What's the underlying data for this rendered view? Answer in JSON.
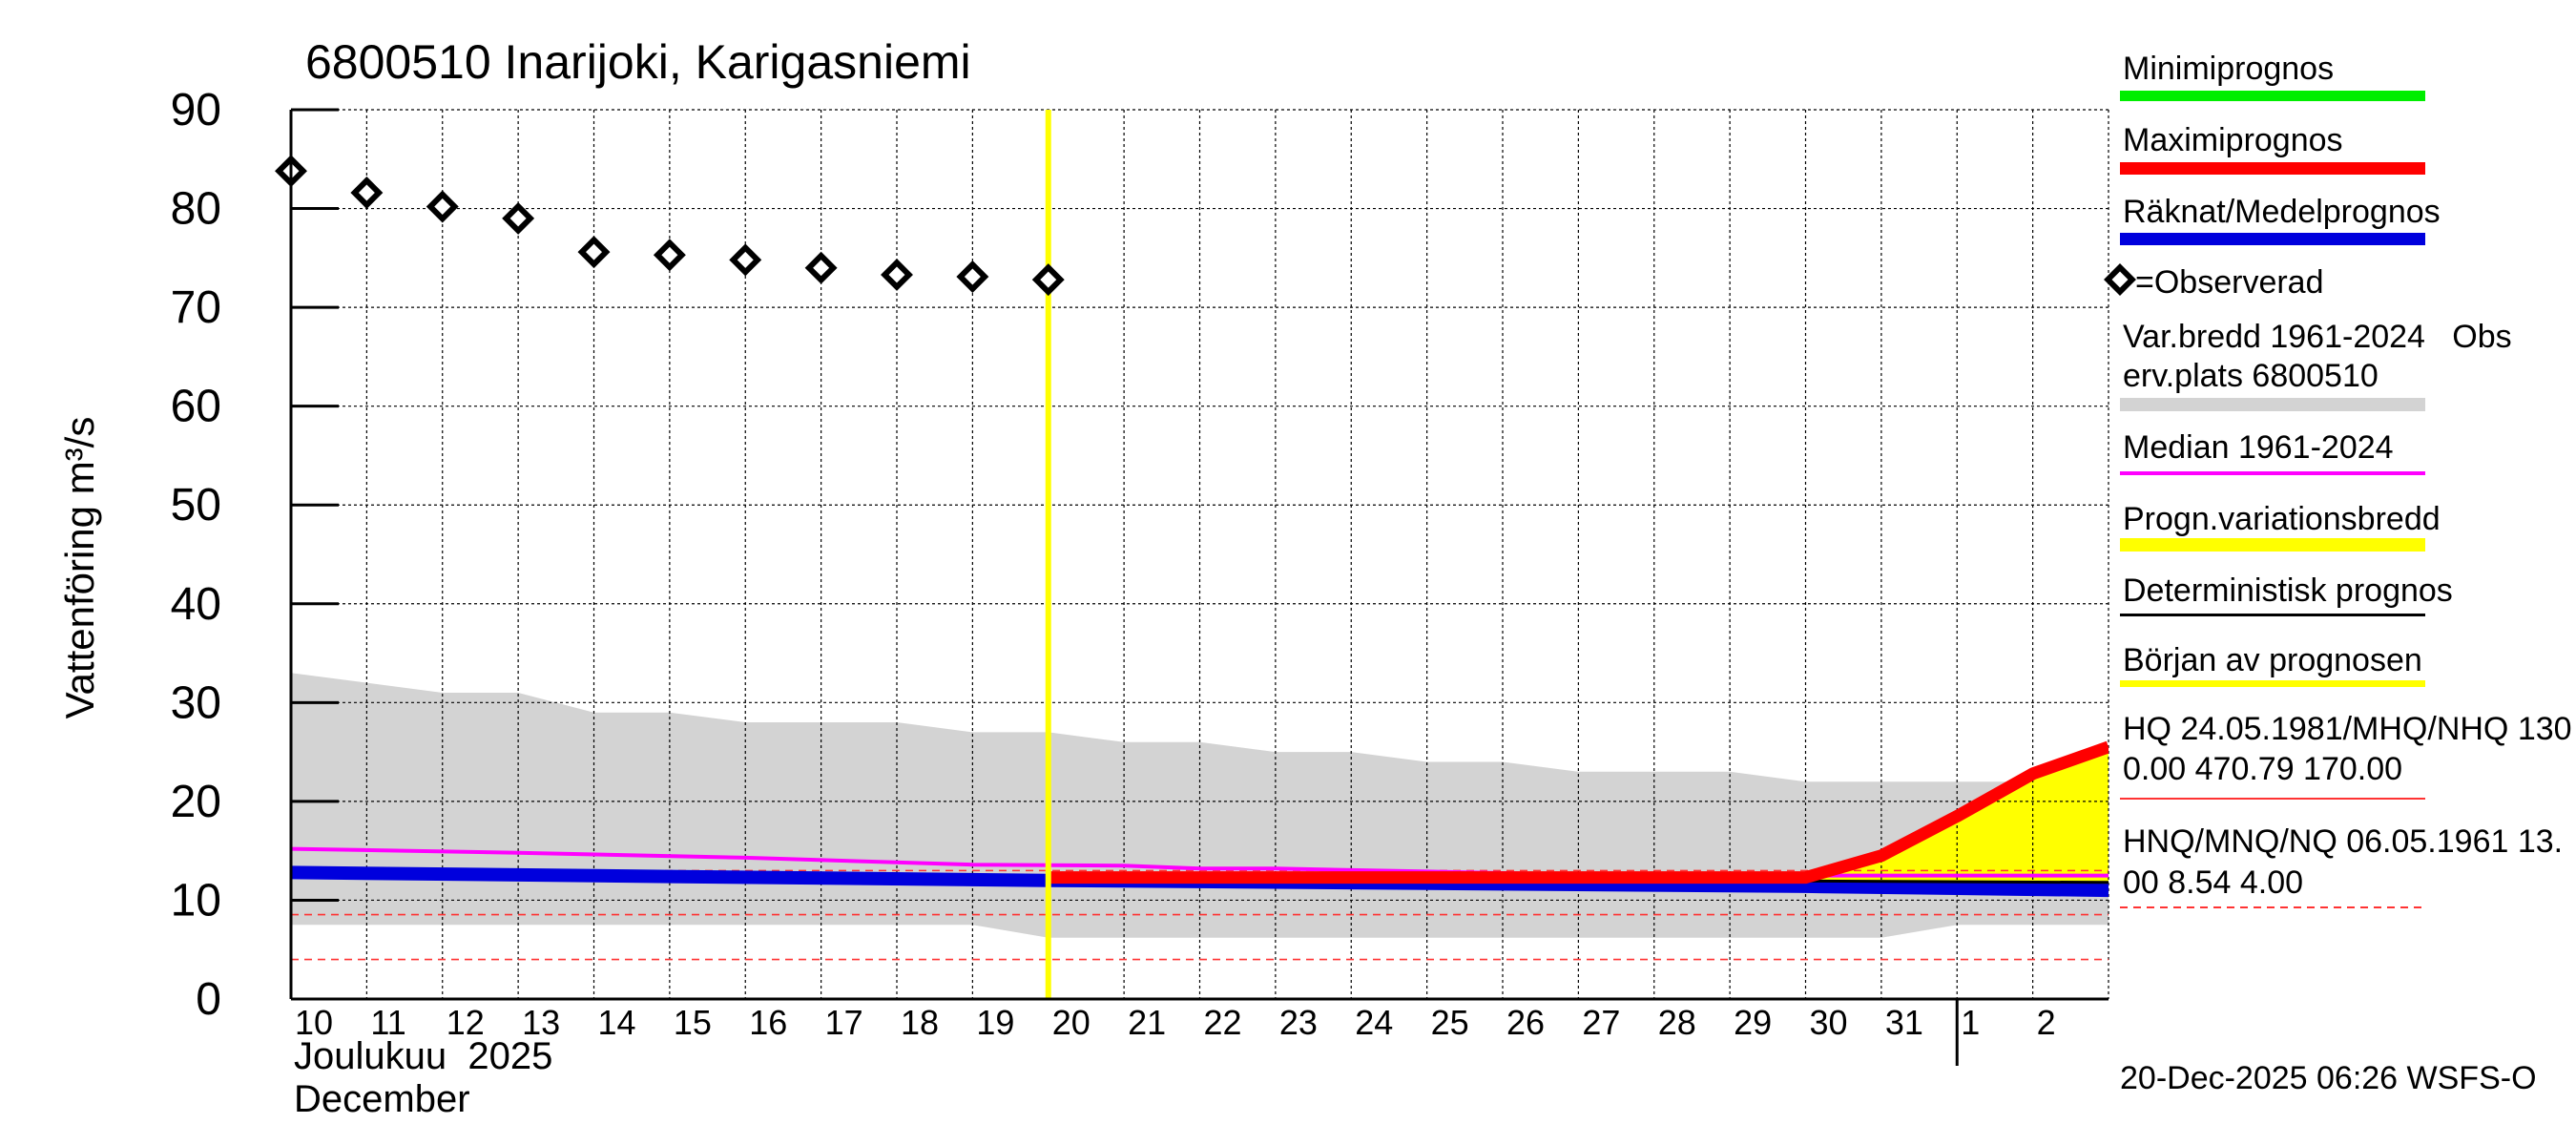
{
  "chart_data": {
    "type": "line",
    "title": "6800510 Inarijoki, Karigasniemi",
    "ylabel": "Vattenföring m³/s",
    "ylim": [
      0,
      90
    ],
    "yticks": [
      0,
      10,
      20,
      30,
      40,
      50,
      60,
      70,
      80,
      90
    ],
    "grid": true,
    "legend_position": "right",
    "xlim": [
      "2025-12-10",
      "2026-01-03"
    ],
    "x_day_labels": [
      "10",
      "11",
      "12",
      "13",
      "14",
      "15",
      "16",
      "17",
      "18",
      "19",
      "20",
      "21",
      "22",
      "23",
      "24",
      "25",
      "26",
      "27",
      "28",
      "29",
      "30",
      "31",
      "1",
      "2"
    ],
    "x_label_month_fi": "Joulukuu  2025",
    "x_label_month_en": "December",
    "forecast_start": "2025-12-20",
    "footer": "20-Dec-2025 06:26 WSFS-O",
    "observed": {
      "name": "=Observerad",
      "x": [
        "2025-12-10",
        "2025-12-11",
        "2025-12-12",
        "2025-12-13",
        "2025-12-14",
        "2025-12-15",
        "2025-12-16",
        "2025-12-17",
        "2025-12-18",
        "2025-12-19",
        "2025-12-20"
      ],
      "y": [
        83.8,
        81.6,
        80.2,
        79.0,
        75.6,
        75.3,
        74.8,
        74.0,
        73.3,
        73.1,
        72.8
      ]
    },
    "variation_band": {
      "name_line1": "Var.bredd 1961-2024   Obs",
      "name_line2": "erv.plats 6800510",
      "color": "#d3d3d3",
      "x": [
        "2025-12-10",
        "2025-12-11",
        "2025-12-12",
        "2025-12-13",
        "2025-12-14",
        "2025-12-15",
        "2025-12-16",
        "2025-12-17",
        "2025-12-18",
        "2025-12-19",
        "2025-12-20",
        "2025-12-21",
        "2025-12-22",
        "2025-12-23",
        "2025-12-24",
        "2025-12-25",
        "2025-12-26",
        "2025-12-27",
        "2025-12-28",
        "2025-12-29",
        "2025-12-30",
        "2025-12-31",
        "2026-01-01",
        "2026-01-02",
        "2026-01-03"
      ],
      "upper": [
        33,
        32,
        31,
        31,
        29,
        29,
        28,
        28,
        28,
        27,
        27,
        26,
        26,
        25,
        25,
        24,
        24,
        23,
        23,
        23,
        22,
        22,
        22,
        22,
        22
      ],
      "lower": [
        7.5,
        7.5,
        7.5,
        7.5,
        7.5,
        7.5,
        7.5,
        7.5,
        7.5,
        7.5,
        6.2,
        6.2,
        6.2,
        6.2,
        6.2,
        6.2,
        6.2,
        6.2,
        6.2,
        6.2,
        6.2,
        6.2,
        7.5,
        7.5,
        7.5
      ]
    },
    "median": {
      "name": "Median 1961-2024",
      "color": "#ff00ff",
      "x": [
        "2025-12-10",
        "2025-12-13",
        "2025-12-16",
        "2025-12-19",
        "2025-12-21",
        "2025-12-22",
        "2025-12-23",
        "2025-12-25",
        "2025-12-27",
        "2025-12-30",
        "2026-01-03"
      ],
      "y": [
        15.2,
        14.8,
        14.3,
        13.6,
        13.5,
        13.2,
        13.2,
        12.9,
        12.6,
        12.5,
        12.5
      ]
    },
    "forecast_band": {
      "name": "Progn.variationsbredd",
      "color": "#ffff00",
      "x": [
        "2025-12-30",
        "2025-12-31",
        "2026-01-01",
        "2026-01-02",
        "2026-01-03"
      ],
      "upper": [
        12.2,
        14.5,
        18.5,
        22.8,
        25.5
      ],
      "lower": [
        11.8,
        11.6,
        11.4,
        11.2,
        11.0
      ]
    },
    "max_forecast": {
      "name": "Maximiprognos",
      "color": "#ff0000",
      "x": [
        "2025-12-20",
        "2025-12-30",
        "2025-12-31",
        "2026-01-01",
        "2026-01-02",
        "2026-01-03"
      ],
      "y": [
        12.3,
        12.3,
        14.5,
        18.5,
        22.8,
        25.5
      ]
    },
    "min_forecast": {
      "name": "Minimiprognos",
      "color": "#00ee00",
      "x": [
        "2025-12-20",
        "2026-01-03"
      ],
      "y": [
        12.1,
        11.0
      ]
    },
    "mean_forecast": {
      "name": "Räknat/Medelprognos",
      "color": "#0000dd",
      "x": [
        "2025-12-10",
        "2025-12-15",
        "2025-12-20",
        "2025-12-25",
        "2025-12-30",
        "2026-01-03"
      ],
      "y": [
        12.8,
        12.4,
        12.0,
        11.7,
        11.4,
        11.0
      ]
    },
    "deterministic": {
      "name": "Deterministisk prognos",
      "color": "#000000",
      "x": [
        "2025-12-20",
        "2026-01-03"
      ],
      "y": [
        12.3,
        11.8
      ]
    },
    "forecast_start_legend": "Början av prognosen",
    "hq_legend_line1": "HQ 24.05.1981/MHQ/NHQ 130",
    "hq_legend_line2": "0.00 470.79 170.00",
    "hnq_legend_line1": "HNQ/MNQ/NQ 06.05.1961 13.",
    "hnq_legend_line2": "00 8.54 4.00",
    "ref_lines": [
      {
        "name": "HNQ",
        "y": 13.0
      },
      {
        "name": "MNQ",
        "y": 8.54
      },
      {
        "name": "NQ",
        "y": 4.0
      }
    ]
  }
}
